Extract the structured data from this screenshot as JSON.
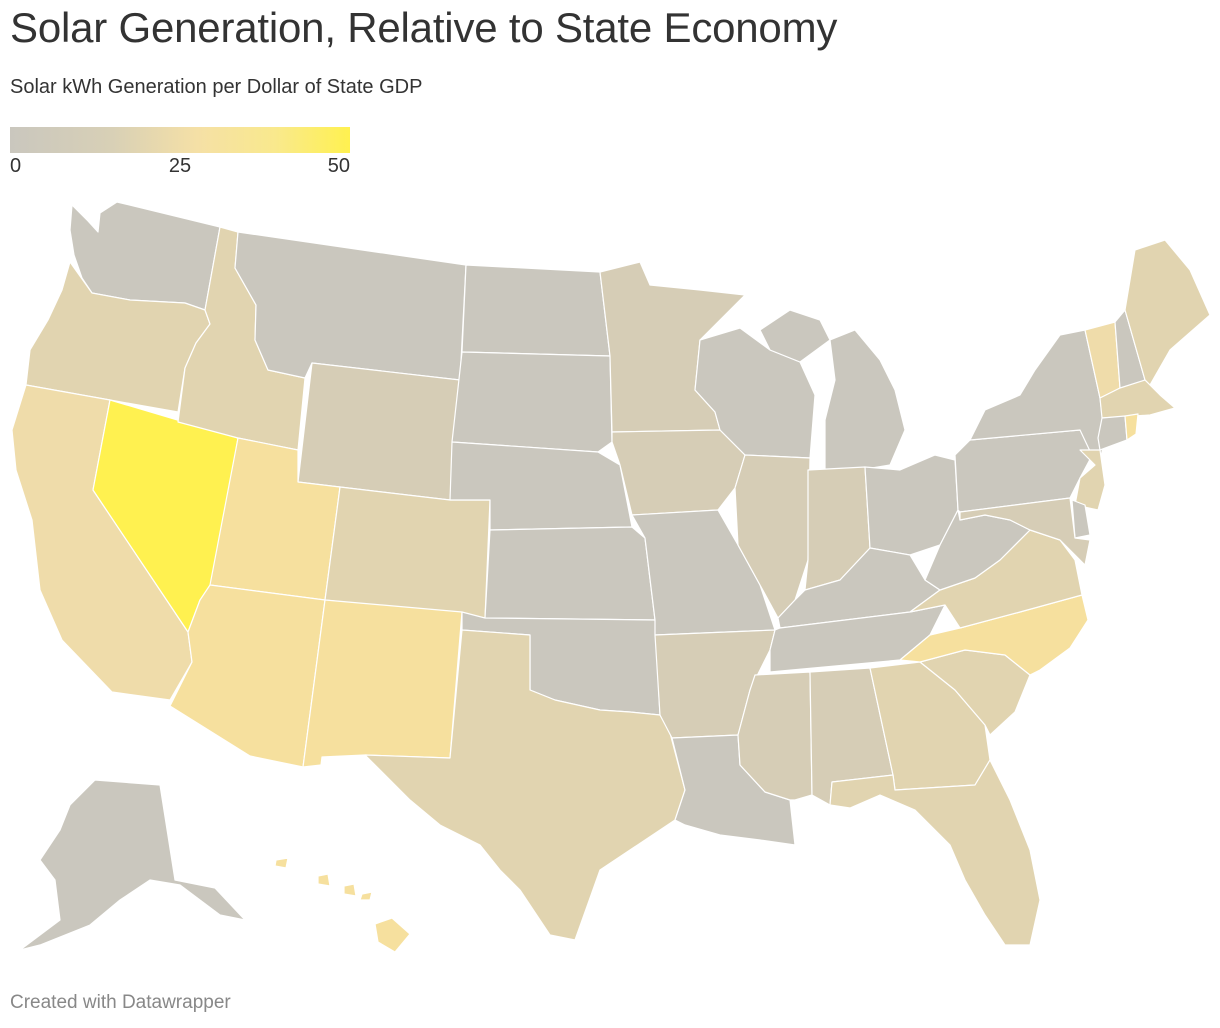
{
  "header": {
    "title": "Solar Generation, Relative to State Economy",
    "subtitle": "Solar kWh Generation per Dollar of State GDP"
  },
  "legend": {
    "min_label": "0",
    "mid_label": "25",
    "max_label": "50",
    "color_min": "#cac7be",
    "color_mid": "#f5e0a6",
    "color_max": "#fff150"
  },
  "map": {
    "type": "choropleth",
    "region": "United States",
    "colors": {
      "very_low": "#cac7be",
      "low": "#d6cdb6",
      "low_mid": "#e1d4b0",
      "mid": "#efdcaa",
      "mid_high": "#f6e09e",
      "top": "#fff150"
    },
    "states": {
      "WA": "very_low",
      "OR": "low_mid",
      "CA": "mid",
      "NV": "top",
      "ID": "low_mid",
      "MT": "very_low",
      "WY": "low",
      "UT": "mid_high",
      "AZ": "mid_high",
      "CO": "low_mid",
      "NM": "mid_high",
      "ND": "very_low",
      "SD": "very_low",
      "NE": "very_low",
      "KS": "very_low",
      "OK": "very_low",
      "TX": "low_mid",
      "MN": "low",
      "IA": "low",
      "MO": "very_low",
      "AR": "low",
      "LA": "very_low",
      "WI": "very_low",
      "IL": "low",
      "MI": "very_low",
      "IN": "low",
      "OH": "very_low",
      "KY": "very_low",
      "TN": "very_low",
      "MS": "low",
      "AL": "low",
      "GA": "low_mid",
      "FL": "low_mid",
      "SC": "low_mid",
      "NC": "mid_high",
      "VA": "low_mid",
      "WV": "very_low",
      "PA": "very_low",
      "NY": "very_low",
      "VT": "mid",
      "NH": "very_low",
      "ME": "low_mid",
      "MA": "low_mid",
      "CT": "very_low",
      "RI": "mid_high",
      "NJ": "low_mid",
      "DE": "very_low",
      "MD": "low",
      "AK": "very_low",
      "HI": "mid_high"
    }
  },
  "footer": {
    "credit": "Created with Datawrapper"
  }
}
